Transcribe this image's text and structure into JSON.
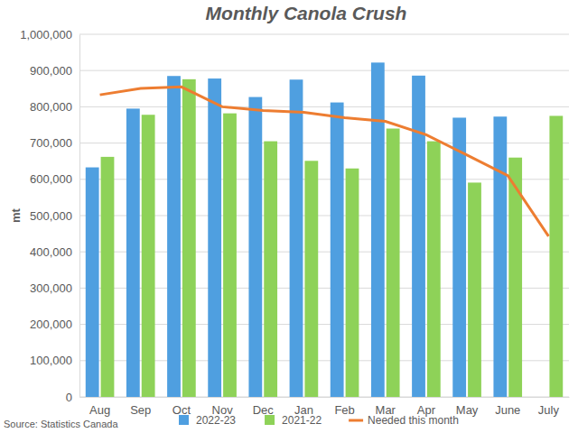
{
  "chart_data": {
    "type": "bar",
    "title": "Monthly Canola Crush",
    "y_label": "mt",
    "source": "Source: Statistics Canada",
    "categories": [
      "Aug",
      "Sep",
      "Oct",
      "Nov",
      "Dec",
      "Jan",
      "Feb",
      "Mar",
      "Apr",
      "May",
      "June",
      "July"
    ],
    "series": [
      {
        "name": "2022-23",
        "type": "bar",
        "color": "#4f9fe0",
        "values": [
          633000,
          795000,
          885000,
          878000,
          827000,
          875000,
          812000,
          922000,
          886000,
          770000,
          773000,
          null
        ]
      },
      {
        "name": "2021-22",
        "type": "bar",
        "color": "#8ed258",
        "values": [
          662000,
          778000,
          876000,
          782000,
          705000,
          651000,
          630000,
          740000,
          705000,
          591000,
          660000,
          775000
        ]
      },
      {
        "name": "Needed this month",
        "type": "line",
        "color": "#ed7d31",
        "values": [
          833000,
          851000,
          855000,
          800000,
          790000,
          785000,
          770000,
          760000,
          723000,
          667000,
          610000,
          443000
        ]
      }
    ],
    "ylim": [
      0,
      1000000
    ],
    "yticks": [
      0,
      {
        "value": 100000,
        "label": "100,000"
      },
      {
        "value": 200000,
        "label": "200,000"
      },
      {
        "value": 300000,
        "label": "300,000"
      },
      {
        "value": 400000,
        "label": "400,000"
      },
      {
        "value": 500000,
        "label": "500,000"
      },
      {
        "value": 600000,
        "label": "600,000"
      },
      {
        "value": 700000,
        "label": "700,000"
      },
      {
        "value": 800000,
        "label": "800,000"
      },
      {
        "value": 900000,
        "label": "900,000"
      },
      {
        "value": 1000000,
        "label": "1,000,000"
      }
    ],
    "grid": true,
    "legend": "bottom"
  }
}
